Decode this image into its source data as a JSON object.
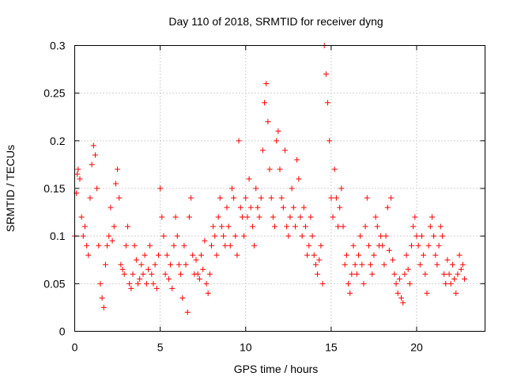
{
  "chart_data": {
    "type": "scatter",
    "title": "Day 110 of 2018, SRMTID for receiver dyng",
    "xlabel": "GPS time / hours",
    "ylabel": "SRMTID / TECUs",
    "xlim": [
      0,
      24
    ],
    "ylim": [
      0,
      0.3
    ],
    "xticks": [
      0,
      5,
      10,
      15,
      20
    ],
    "xtick_labels": [
      "0",
      "5",
      "10",
      "15",
      "20"
    ],
    "yticks": [
      0,
      0.05,
      0.1,
      0.15,
      0.2,
      0.25,
      0.3
    ],
    "ytick_labels": [
      "0",
      "0.05",
      "0.1",
      "0.15",
      "0.2",
      "0.25",
      "0.3"
    ],
    "grid": true,
    "marker": "plus",
    "color": "#ff0000",
    "series": [
      {
        "name": "SRMTID",
        "points": [
          [
            0.0,
            0.1
          ],
          [
            0.1,
            0.145
          ],
          [
            0.15,
            0.165
          ],
          [
            0.2,
            0.17
          ],
          [
            0.3,
            0.16
          ],
          [
            0.4,
            0.12
          ],
          [
            0.5,
            0.1
          ],
          [
            0.6,
            0.11
          ],
          [
            0.7,
            0.09
          ],
          [
            0.8,
            0.08
          ],
          [
            0.9,
            0.14
          ],
          [
            1.0,
            0.175
          ],
          [
            1.1,
            0.195
          ],
          [
            1.2,
            0.185
          ],
          [
            1.3,
            0.15
          ],
          [
            1.4,
            0.09
          ],
          [
            1.5,
            0.05
          ],
          [
            1.6,
            0.035
          ],
          [
            1.7,
            0.025
          ],
          [
            1.8,
            0.07
          ],
          [
            1.9,
            0.09
          ],
          [
            2.0,
            0.1
          ],
          [
            2.1,
            0.13
          ],
          [
            2.2,
            0.095
          ],
          [
            2.3,
            0.11
          ],
          [
            2.4,
            0.155
          ],
          [
            2.5,
            0.17
          ],
          [
            2.6,
            0.14
          ],
          [
            2.7,
            0.07
          ],
          [
            2.8,
            0.065
          ],
          [
            2.9,
            0.06
          ],
          [
            3.0,
            0.09
          ],
          [
            3.1,
            0.11
          ],
          [
            3.2,
            0.05
          ],
          [
            3.3,
            0.045
          ],
          [
            3.4,
            0.06
          ],
          [
            3.5,
            0.09
          ],
          [
            3.6,
            0.075
          ],
          [
            3.7,
            0.05
          ],
          [
            3.8,
            0.055
          ],
          [
            3.9,
            0.07
          ],
          [
            4.0,
            0.06
          ],
          [
            4.1,
            0.08
          ],
          [
            4.2,
            0.05
          ],
          [
            4.3,
            0.065
          ],
          [
            4.4,
            0.09
          ],
          [
            4.5,
            0.06
          ],
          [
            4.6,
            0.05
          ],
          [
            4.7,
            0.07
          ],
          [
            4.8,
            0.045
          ],
          [
            4.9,
            0.08
          ],
          [
            5.0,
            0.15
          ],
          [
            5.1,
            0.12
          ],
          [
            5.2,
            0.1
          ],
          [
            5.3,
            0.06
          ],
          [
            5.4,
            0.08
          ],
          [
            5.5,
            0.055
          ],
          [
            5.6,
            0.07
          ],
          [
            5.7,
            0.045
          ],
          [
            5.8,
            0.09
          ],
          [
            5.9,
            0.12
          ],
          [
            6.0,
            0.1
          ],
          [
            6.1,
            0.07
          ],
          [
            6.2,
            0.06
          ],
          [
            6.3,
            0.035
          ],
          [
            6.4,
            0.09
          ],
          [
            6.5,
            0.07
          ],
          [
            6.6,
            0.02
          ],
          [
            6.7,
            0.12
          ],
          [
            6.8,
            0.14
          ],
          [
            6.9,
            0.08
          ],
          [
            7.0,
            0.06
          ],
          [
            7.1,
            0.075
          ],
          [
            7.2,
            0.06
          ],
          [
            7.3,
            0.055
          ],
          [
            7.4,
            0.08
          ],
          [
            7.5,
            0.065
          ],
          [
            7.6,
            0.095
          ],
          [
            7.7,
            0.05
          ],
          [
            7.8,
            0.04
          ],
          [
            7.9,
            0.06
          ],
          [
            8.0,
            0.09
          ],
          [
            8.1,
            0.11
          ],
          [
            8.2,
            0.1
          ],
          [
            8.3,
            0.08
          ],
          [
            8.4,
            0.12
          ],
          [
            8.5,
            0.14
          ],
          [
            8.6,
            0.11
          ],
          [
            8.7,
            0.1
          ],
          [
            8.8,
            0.09
          ],
          [
            8.9,
            0.13
          ],
          [
            9.0,
            0.11
          ],
          [
            9.1,
            0.09
          ],
          [
            9.2,
            0.15
          ],
          [
            9.3,
            0.14
          ],
          [
            9.4,
            0.1
          ],
          [
            9.5,
            0.08
          ],
          [
            9.6,
            0.2
          ],
          [
            9.7,
            0.13
          ],
          [
            9.8,
            0.12
          ],
          [
            9.9,
            0.1
          ],
          [
            10.0,
            0.14
          ],
          [
            10.1,
            0.12
          ],
          [
            10.2,
            0.16
          ],
          [
            10.3,
            0.13
          ],
          [
            10.4,
            0.11
          ],
          [
            10.5,
            0.09
          ],
          [
            10.6,
            0.15
          ],
          [
            10.7,
            0.13
          ],
          [
            10.8,
            0.12
          ],
          [
            10.9,
            0.14
          ],
          [
            11.0,
            0.19
          ],
          [
            11.1,
            0.24
          ],
          [
            11.2,
            0.26
          ],
          [
            11.3,
            0.22
          ],
          [
            11.4,
            0.17
          ],
          [
            11.5,
            0.14
          ],
          [
            11.6,
            0.12
          ],
          [
            11.7,
            0.11
          ],
          [
            11.8,
            0.2
          ],
          [
            11.9,
            0.21
          ],
          [
            12.0,
            0.17
          ],
          [
            12.1,
            0.14
          ],
          [
            12.2,
            0.13
          ],
          [
            12.3,
            0.19
          ],
          [
            12.4,
            0.11
          ],
          [
            12.5,
            0.1
          ],
          [
            12.6,
            0.12
          ],
          [
            12.7,
            0.15
          ],
          [
            12.8,
            0.13
          ],
          [
            12.9,
            0.11
          ],
          [
            13.0,
            0.18
          ],
          [
            13.1,
            0.16
          ],
          [
            13.2,
            0.12
          ],
          [
            13.3,
            0.1
          ],
          [
            13.4,
            0.13
          ],
          [
            13.5,
            0.11
          ],
          [
            13.6,
            0.08
          ],
          [
            13.7,
            0.09
          ],
          [
            13.8,
            0.12
          ],
          [
            13.9,
            0.1
          ],
          [
            14.0,
            0.08
          ],
          [
            14.1,
            0.07
          ],
          [
            14.2,
            0.06
          ],
          [
            14.3,
            0.075
          ],
          [
            14.4,
            0.09
          ],
          [
            14.5,
            0.05
          ],
          [
            14.6,
            0.3
          ],
          [
            14.7,
            0.27
          ],
          [
            14.8,
            0.24
          ],
          [
            14.9,
            0.2
          ],
          [
            15.0,
            0.14
          ],
          [
            15.1,
            0.12
          ],
          [
            15.2,
            0.17
          ],
          [
            15.3,
            0.14
          ],
          [
            15.4,
            0.11
          ],
          [
            15.5,
            0.13
          ],
          [
            15.6,
            0.15
          ],
          [
            15.7,
            0.11
          ],
          [
            15.8,
            0.07
          ],
          [
            15.9,
            0.08
          ],
          [
            16.0,
            0.05
          ],
          [
            16.1,
            0.04
          ],
          [
            16.2,
            0.06
          ],
          [
            16.3,
            0.09
          ],
          [
            16.4,
            0.07
          ],
          [
            16.5,
            0.06
          ],
          [
            16.6,
            0.08
          ],
          [
            16.7,
            0.1
          ],
          [
            16.8,
            0.07
          ],
          [
            16.9,
            0.05
          ],
          [
            17.0,
            0.11
          ],
          [
            17.1,
            0.14
          ],
          [
            17.2,
            0.09
          ],
          [
            17.3,
            0.07
          ],
          [
            17.4,
            0.06
          ],
          [
            17.5,
            0.08
          ],
          [
            17.6,
            0.12
          ],
          [
            17.7,
            0.11
          ],
          [
            17.8,
            0.09
          ],
          [
            17.9,
            0.1
          ],
          [
            18.0,
            0.09
          ],
          [
            18.1,
            0.07
          ],
          [
            18.2,
            0.1
          ],
          [
            18.3,
            0.13
          ],
          [
            18.4,
            0.085
          ],
          [
            18.5,
            0.14
          ],
          [
            18.6,
            0.075
          ],
          [
            18.7,
            0.06
          ],
          [
            18.8,
            0.05
          ],
          [
            18.9,
            0.04
          ],
          [
            19.0,
            0.055
          ],
          [
            19.1,
            0.035
          ],
          [
            19.2,
            0.03
          ],
          [
            19.3,
            0.06
          ],
          [
            19.4,
            0.08
          ],
          [
            19.5,
            0.065
          ],
          [
            19.6,
            0.05
          ],
          [
            19.7,
            0.09
          ],
          [
            19.8,
            0.11
          ],
          [
            19.9,
            0.12
          ],
          [
            20.0,
            0.1
          ],
          [
            20.1,
            0.09
          ],
          [
            20.2,
            0.07
          ],
          [
            20.3,
            0.1
          ],
          [
            20.4,
            0.08
          ],
          [
            20.5,
            0.06
          ],
          [
            20.6,
            0.04
          ],
          [
            20.7,
            0.09
          ],
          [
            20.8,
            0.11
          ],
          [
            20.9,
            0.12
          ],
          [
            21.0,
            0.1
          ],
          [
            21.1,
            0.08
          ],
          [
            21.2,
            0.07
          ],
          [
            21.3,
            0.09
          ],
          [
            21.4,
            0.11
          ],
          [
            21.5,
            0.1
          ],
          [
            21.6,
            0.06
          ],
          [
            21.7,
            0.05
          ],
          [
            21.8,
            0.075
          ],
          [
            21.9,
            0.06
          ],
          [
            22.0,
            0.05
          ],
          [
            22.1,
            0.07
          ],
          [
            22.2,
            0.055
          ],
          [
            22.3,
            0.04
          ],
          [
            22.4,
            0.06
          ],
          [
            22.5,
            0.08
          ],
          [
            22.6,
            0.065
          ],
          [
            22.7,
            0.07
          ],
          [
            22.8,
            0.055
          ]
        ]
      }
    ]
  }
}
